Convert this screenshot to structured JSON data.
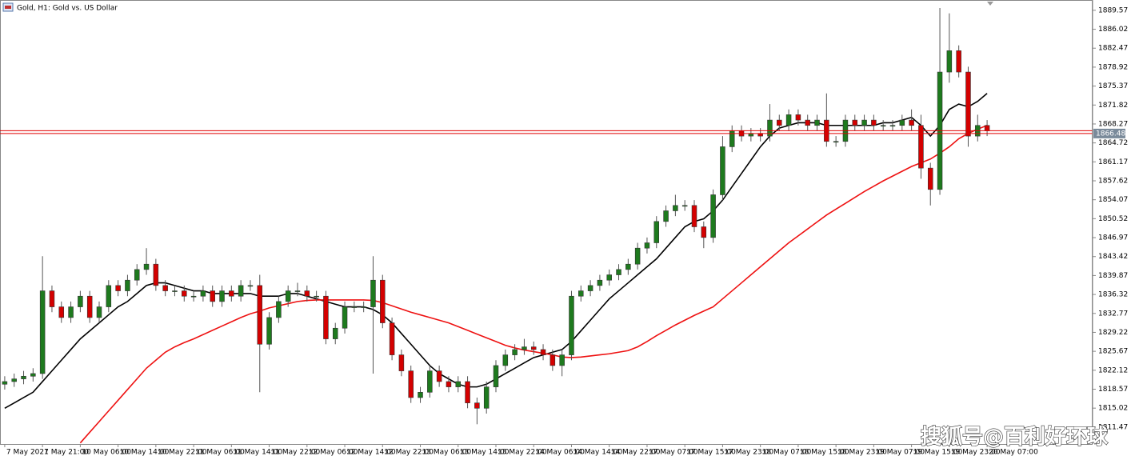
{
  "chart_data": {
    "type": "candlestick",
    "title": "Gold, H1: Gold vs. US Dollar",
    "watermark": "搜狐号@百利好环球",
    "up_color": "#1e7a1e",
    "down_color": "#d40000",
    "ylim": [
      1808.3,
      1891.5
    ],
    "yticks": [
      1889.57,
      1886.02,
      1882.47,
      1878.92,
      1875.37,
      1871.82,
      1868.27,
      1864.72,
      1861.17,
      1857.62,
      1854.07,
      1850.52,
      1846.97,
      1843.42,
      1839.87,
      1836.32,
      1832.77,
      1829.22,
      1825.67,
      1822.12,
      1818.57,
      1815.02,
      1811.47
    ],
    "bid": 1866.48,
    "ask": 1867.0,
    "price_line_color": "#e00000",
    "categories": [
      "7 May 2021",
      null,
      null,
      null,
      "7 May 21:00",
      null,
      null,
      null,
      "10 May 06:00",
      null,
      null,
      null,
      "10 May 14:00",
      null,
      null,
      null,
      "10 May 22:00",
      null,
      null,
      null,
      "11 May 06:00",
      null,
      null,
      null,
      "11 May 14:00",
      null,
      null,
      null,
      "11 May 22:00",
      null,
      null,
      null,
      "12 May 06:00",
      null,
      null,
      null,
      "12 May 14:00",
      null,
      null,
      null,
      "12 May 22:00",
      null,
      null,
      null,
      "13 May 06:00",
      null,
      null,
      null,
      "13 May 14:00",
      null,
      null,
      null,
      "13 May 22:00",
      null,
      null,
      null,
      "14 May 06:00",
      null,
      null,
      null,
      "14 May 14:00",
      null,
      null,
      null,
      "14 May 22:00",
      null,
      null,
      null,
      "17 May 07:00",
      null,
      null,
      null,
      "17 May 15:00",
      null,
      null,
      null,
      "17 May 23:00",
      null,
      null,
      null,
      "18 May 07:00",
      null,
      null,
      null,
      "18 May 15:00",
      null,
      null,
      null,
      "18 May 23:00",
      null,
      null,
      null,
      "19 May 07:00",
      null,
      null,
      null,
      "19 May 15:00",
      null,
      null,
      null,
      "19 May 23:00",
      null,
      null,
      null,
      "20 May 07:00"
    ],
    "open": [
      1819.5,
      1820,
      1820.5,
      1821,
      1821.5,
      1837,
      1834,
      1832,
      1834,
      1836,
      1832,
      1834,
      1838,
      1837,
      1839,
      1841,
      1842,
      1838,
      1837,
      1837,
      1836,
      1836,
      1837,
      1835,
      1837,
      1836,
      1838,
      1838,
      1827,
      1832,
      1835,
      1837,
      1837,
      1836,
      1836,
      1828,
      1830,
      1834,
      1834,
      1834,
      1839,
      1831,
      1825,
      1822,
      1817,
      1818,
      1822,
      1820,
      1819,
      1820,
      1816,
      1815,
      1819,
      1823,
      1825,
      1826,
      1826.5,
      1826,
      1825,
      1823,
      1825,
      1836,
      1837,
      1838,
      1839,
      1840,
      1841,
      1842,
      1845,
      1846,
      1850,
      1852,
      1853,
      1853,
      1849,
      1847,
      1855,
      1864,
      1867,
      1866,
      1866.5,
      1866,
      1869,
      1868,
      1870,
      1869,
      1868,
      1869,
      1865,
      1865,
      1869,
      1868,
      1869,
      1868,
      1868,
      1868,
      1869,
      1868,
      1860,
      1856,
      1878,
      1882,
      1878,
      1866,
      1868
    ],
    "high": [
      1821,
      1821.5,
      1822,
      1822.5,
      1843.5,
      1838,
      1835,
      1835,
      1837,
      1837,
      1835,
      1839,
      1839,
      1840,
      1842,
      1845,
      1843,
      1839,
      1838,
      1838,
      1837,
      1838,
      1838,
      1838,
      1838,
      1839,
      1839,
      1840,
      1833,
      1836,
      1838,
      1838.5,
      1838,
      1837,
      1837,
      1831,
      1835,
      1835,
      1835,
      1843.5,
      1840,
      1832,
      1826,
      1823,
      1819,
      1823,
      1823,
      1821,
      1821,
      1821,
      1817,
      1820,
      1824,
      1826,
      1827,
      1828,
      1827.5,
      1827,
      1826,
      1826,
      1837,
      1838,
      1839,
      1840,
      1841,
      1842,
      1843,
      1846,
      1847,
      1851,
      1853,
      1855,
      1854,
      1854,
      1850,
      1856,
      1866,
      1868,
      1868,
      1867.5,
      1867.5,
      1872,
      1870,
      1871,
      1871,
      1870,
      1870,
      1874,
      1866,
      1870,
      1870,
      1870,
      1870,
      1869,
      1869,
      1870,
      1871,
      1870,
      1861,
      1890,
      1889,
      1883,
      1879,
      1870,
      1869
    ],
    "low": [
      1818.5,
      1819,
      1819.5,
      1820,
      1820.5,
      1833,
      1831,
      1831,
      1833,
      1831,
      1831,
      1833,
      1836,
      1836,
      1838,
      1840,
      1837,
      1836,
      1836,
      1835,
      1835,
      1835,
      1834,
      1834,
      1835,
      1835,
      1837,
      1818,
      1826,
      1831,
      1834,
      1836,
      1835,
      1835,
      1827,
      1827,
      1829,
      1833,
      1833,
      1821.5,
      1830,
      1824,
      1821,
      1816,
      1816,
      1817,
      1819,
      1818,
      1818,
      1815,
      1812,
      1814,
      1818,
      1822,
      1824,
      1825,
      1825,
      1824,
      1822,
      1821,
      1824,
      1835,
      1836,
      1837,
      1838,
      1839,
      1840,
      1841,
      1844,
      1845,
      1849,
      1851,
      1852,
      1848,
      1845,
      1846,
      1854,
      1863,
      1865,
      1865,
      1865,
      1865,
      1867,
      1867,
      1868,
      1867,
      1867,
      1864,
      1864,
      1864,
      1867,
      1867,
      1867,
      1867,
      1867,
      1867,
      1867,
      1858,
      1853,
      1855,
      1876,
      1877,
      1864,
      1865,
      1866
    ],
    "close": [
      1820,
      1820.5,
      1821,
      1821.5,
      1837,
      1834,
      1832,
      1834,
      1836,
      1832,
      1834,
      1838,
      1837,
      1839,
      1841,
      1842,
      1838,
      1837,
      1837,
      1836,
      1836,
      1837,
      1835,
      1837,
      1836,
      1838,
      1838,
      1827,
      1832,
      1835,
      1837,
      1837,
      1836,
      1836,
      1828,
      1830,
      1834,
      1834,
      1834,
      1839,
      1831,
      1825,
      1822,
      1817,
      1818,
      1822,
      1820,
      1819,
      1820,
      1816,
      1815,
      1819,
      1823,
      1825,
      1826,
      1826.5,
      1826,
      1825,
      1823,
      1825,
      1836,
      1837,
      1838,
      1839,
      1840,
      1841,
      1842,
      1845,
      1846,
      1850,
      1852,
      1853,
      1853,
      1849,
      1847,
      1855,
      1864,
      1867,
      1866,
      1866.5,
      1866,
      1869,
      1868,
      1870,
      1869,
      1868,
      1869,
      1865,
      1865,
      1869,
      1868,
      1869,
      1868,
      1868,
      1868,
      1869,
      1868,
      1860,
      1856,
      1878,
      1882,
      1878,
      1866,
      1868,
      1867
    ],
    "overlays": [
      {
        "color": "#000000",
        "values": [
          1815,
          1816,
          1817,
          1818,
          1820,
          1822,
          1824,
          1826,
          1828,
          1829.5,
          1831,
          1832.5,
          1834,
          1835,
          1836.5,
          1838,
          1838.5,
          1838.5,
          1838,
          1837.5,
          1837,
          1837,
          1836.5,
          1836.5,
          1836.5,
          1836.5,
          1836.5,
          1836,
          1836,
          1836,
          1836.5,
          1836.5,
          1836,
          1835.5,
          1835,
          1834.5,
          1834,
          1834,
          1834,
          1833.5,
          1832.5,
          1831,
          1829,
          1827,
          1825,
          1823,
          1821.5,
          1820.5,
          1819.5,
          1819,
          1819,
          1819.5,
          1820.5,
          1821.5,
          1822.5,
          1823.5,
          1824.5,
          1825,
          1825.5,
          1826,
          1827.5,
          1829.5,
          1831.5,
          1833.5,
          1835.5,
          1837,
          1838.5,
          1840,
          1841.5,
          1843,
          1845,
          1847,
          1849,
          1850,
          1850.5,
          1852,
          1854,
          1856.5,
          1859,
          1861.5,
          1864,
          1866,
          1867.5,
          1868,
          1868.5,
          1868.5,
          1868.5,
          1868,
          1868,
          1868,
          1868,
          1868,
          1868,
          1868.5,
          1868.5,
          1869,
          1869.5,
          1868,
          1866,
          1868,
          1871,
          1872,
          1871.5,
          1872.5,
          1874
        ]
      },
      {
        "color": "#ee1111",
        "values": [
          null,
          null,
          null,
          null,
          null,
          null,
          null,
          null,
          1808.5,
          1810.5,
          1812.5,
          1814.5,
          1816.5,
          1818.5,
          1820.5,
          1822.5,
          1824,
          1825.5,
          1826.5,
          1827.3,
          1828,
          1828.8,
          1829.6,
          1830.4,
          1831.2,
          1832,
          1832.7,
          1833.2,
          1833.8,
          1834.2,
          1834.6,
          1835,
          1835.2,
          1835.3,
          1835.3,
          1835.3,
          1835.3,
          1835.3,
          1835.3,
          1835.2,
          1834.8,
          1834.2,
          1833.6,
          1833,
          1832.5,
          1832,
          1831.5,
          1831,
          1830.3,
          1829.6,
          1828.9,
          1828.2,
          1827.5,
          1826.8,
          1826.3,
          1825.9,
          1825.6,
          1825.3,
          1825,
          1824.6,
          1824.5,
          1824.6,
          1824.8,
          1825,
          1825.2,
          1825.5,
          1825.8,
          1826.5,
          1827.5,
          1828.6,
          1829.6,
          1830.6,
          1831.5,
          1832.4,
          1833.2,
          1834,
          1835.5,
          1837,
          1838.5,
          1840,
          1841.5,
          1843,
          1844.5,
          1846,
          1847.3,
          1848.6,
          1849.9,
          1851.2,
          1852.3,
          1853.4,
          1854.5,
          1855.6,
          1856.6,
          1857.6,
          1858.5,
          1859.4,
          1860.3,
          1861,
          1861.7,
          1862.8,
          1864,
          1865.5,
          1866.5,
          1867.3,
          1868
        ]
      }
    ]
  }
}
